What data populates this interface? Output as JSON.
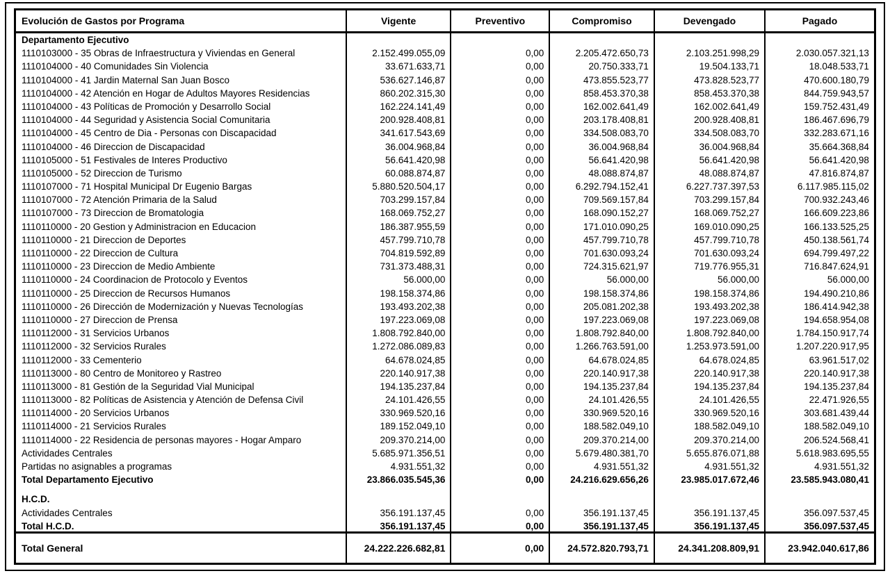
{
  "table": {
    "title": "Evolución de Gastos por Programa",
    "columns": [
      "Vigente",
      "Preventivo",
      "Compromiso",
      "Devengado",
      "Pagado"
    ],
    "sections": [
      {
        "title": "Departamento Ejecutivo",
        "rows": [
          {
            "label": "1110103000 - 35 Obras de Infraestructura y Viviendas en General",
            "values": [
              "2.152.499.055,09",
              "0,00",
              "2.205.472.650,73",
              "2.103.251.998,29",
              "2.030.057.321,13"
            ]
          },
          {
            "label": "1110104000 - 40 Comunidades Sin Violencia",
            "values": [
              "33.671.633,71",
              "0,00",
              "20.750.333,71",
              "19.504.133,71",
              "18.048.533,71"
            ]
          },
          {
            "label": "1110104000 - 41 Jardin Maternal San Juan Bosco",
            "values": [
              "536.627.146,87",
              "0,00",
              "473.855.523,77",
              "473.828.523,77",
              "470.600.180,79"
            ]
          },
          {
            "label": "1110104000 - 42 Atención en Hogar de Adultos Mayores Residencias",
            "values": [
              "860.202.315,30",
              "0,00",
              "858.453.370,38",
              "858.453.370,38",
              "844.759.943,57"
            ]
          },
          {
            "label": "1110104000 - 43 Políticas de Promoción y Desarrollo Social",
            "values": [
              "162.224.141,49",
              "0,00",
              "162.002.641,49",
              "162.002.641,49",
              "159.752.431,49"
            ]
          },
          {
            "label": "1110104000 - 44 Seguridad y Asistencia  Social Comunitaria",
            "values": [
              "200.928.408,81",
              "0,00",
              "203.178.408,81",
              "200.928.408,81",
              "186.467.696,79"
            ]
          },
          {
            "label": "1110104000 - 45 Centro de Dia - Personas con Discapacidad",
            "values": [
              "341.617.543,69",
              "0,00",
              "334.508.083,70",
              "334.508.083,70",
              "332.283.671,16"
            ]
          },
          {
            "label": "1110104000 - 46 Direccion de Discapacidad",
            "values": [
              "36.004.968,84",
              "0,00",
              "36.004.968,84",
              "36.004.968,84",
              "35.664.368,84"
            ]
          },
          {
            "label": "1110105000 - 51 Festivales de Interes Productivo",
            "values": [
              "56.641.420,98",
              "0,00",
              "56.641.420,98",
              "56.641.420,98",
              "56.641.420,98"
            ]
          },
          {
            "label": "1110105000 - 52 Direccion de Turismo",
            "values": [
              "60.088.874,87",
              "0,00",
              "48.088.874,87",
              "48.088.874,87",
              "47.816.874,87"
            ]
          },
          {
            "label": "1110107000 - 71 Hospital Municipal Dr Eugenio Bargas",
            "values": [
              "5.880.520.504,17",
              "0,00",
              "6.292.794.152,41",
              "6.227.737.397,53",
              "6.117.985.115,02"
            ]
          },
          {
            "label": "1110107000 - 72 Atención Primaria de la Salud",
            "values": [
              "703.299.157,84",
              "0,00",
              "709.569.157,84",
              "703.299.157,84",
              "700.932.243,46"
            ]
          },
          {
            "label": "1110107000 - 73 Direccion de Bromatologia",
            "values": [
              "168.069.752,27",
              "0,00",
              "168.090.152,27",
              "168.069.752,27",
              "166.609.223,86"
            ]
          },
          {
            "label": "1110110000 - 20 Gestion y Administracion en Educacion",
            "values": [
              "186.387.955,59",
              "0,00",
              "171.010.090,25",
              "169.010.090,25",
              "166.133.525,25"
            ]
          },
          {
            "label": "1110110000 - 21 Direccion de Deportes",
            "values": [
              "457.799.710,78",
              "0,00",
              "457.799.710,78",
              "457.799.710,78",
              "450.138.561,74"
            ]
          },
          {
            "label": "1110110000 - 22 Direccion de Cultura",
            "values": [
              "704.819.592,89",
              "0,00",
              "701.630.093,24",
              "701.630.093,24",
              "694.799.497,22"
            ]
          },
          {
            "label": "1110110000 - 23 Direccion de Medio Ambiente",
            "values": [
              "731.373.488,31",
              "0,00",
              "724.315.621,97",
              "719.776.955,31",
              "716.847.624,91"
            ]
          },
          {
            "label": "1110110000 - 24 Coordinacion de Protocolo y Eventos",
            "values": [
              "56.000,00",
              "0,00",
              "56.000,00",
              "56.000,00",
              "56.000,00"
            ]
          },
          {
            "label": "1110110000 - 25 Direccion de Recursos Humanos",
            "values": [
              "198.158.374,86",
              "0,00",
              "198.158.374,86",
              "198.158.374,86",
              "194.490.210,86"
            ]
          },
          {
            "label": "1110110000 - 26 Dirección de Modernización y Nuevas Tecnologías",
            "values": [
              "193.493.202,38",
              "0,00",
              "205.081.202,38",
              "193.493.202,38",
              "186.414.942,38"
            ]
          },
          {
            "label": "1110110000 - 27 Direccion de Prensa",
            "values": [
              "197.223.069,08",
              "0,00",
              "197.223.069,08",
              "197.223.069,08",
              "194.658.954,08"
            ]
          },
          {
            "label": "1110112000 - 31 Servicios Urbanos",
            "values": [
              "1.808.792.840,00",
              "0,00",
              "1.808.792.840,00",
              "1.808.792.840,00",
              "1.784.150.917,74"
            ]
          },
          {
            "label": "1110112000 - 32 Servicios Rurales",
            "values": [
              "1.272.086.089,83",
              "0,00",
              "1.266.763.591,00",
              "1.253.973.591,00",
              "1.207.220.917,95"
            ]
          },
          {
            "label": "1110112000 - 33 Cementerio",
            "values": [
              "64.678.024,85",
              "0,00",
              "64.678.024,85",
              "64.678.024,85",
              "63.961.517,02"
            ]
          },
          {
            "label": "1110113000 - 80 Centro de Monitoreo y Rastreo",
            "values": [
              "220.140.917,38",
              "0,00",
              "220.140.917,38",
              "220.140.917,38",
              "220.140.917,38"
            ]
          },
          {
            "label": "1110113000 - 81 Gestión de la Seguridad Vial Municipal",
            "values": [
              "194.135.237,84",
              "0,00",
              "194.135.237,84",
              "194.135.237,84",
              "194.135.237,84"
            ]
          },
          {
            "label": "1110113000 - 82 Políticas de Asistencia y Atención de Defensa Civil",
            "values": [
              "24.101.426,55",
              "0,00",
              "24.101.426,55",
              "24.101.426,55",
              "22.471.926,55"
            ]
          },
          {
            "label": "1110114000 - 20 Servicios Urbanos",
            "values": [
              "330.969.520,16",
              "0,00",
              "330.969.520,16",
              "330.969.520,16",
              "303.681.439,44"
            ]
          },
          {
            "label": "1110114000 - 21 Servicios Rurales",
            "values": [
              "189.152.049,10",
              "0,00",
              "188.582.049,10",
              "188.582.049,10",
              "188.582.049,10"
            ]
          },
          {
            "label": "1110114000 - 22 Residencia de personas mayores - Hogar Amparo",
            "values": [
              "209.370.214,00",
              "0,00",
              "209.370.214,00",
              "209.370.214,00",
              "206.524.568,41"
            ]
          },
          {
            "label": "Actividades Centrales",
            "values": [
              "5.685.971.356,51",
              "0,00",
              "5.679.480.381,70",
              "5.655.876.071,88",
              "5.618.983.695,55"
            ]
          },
          {
            "label": "Partidas no asignables a programas",
            "values": [
              "4.931.551,32",
              "0,00",
              "4.931.551,32",
              "4.931.551,32",
              "4.931.551,32"
            ]
          }
        ],
        "total": {
          "label": "Total Departamento Ejecutivo",
          "values": [
            "23.866.035.545,36",
            "0,00",
            "24.216.629.656,26",
            "23.985.017.672,46",
            "23.585.943.080,41"
          ]
        }
      },
      {
        "title": "H.C.D.",
        "rows": [
          {
            "label": "Actividades Centrales",
            "values": [
              "356.191.137,45",
              "0,00",
              "356.191.137,45",
              "356.191.137,45",
              "356.097.537,45"
            ]
          }
        ],
        "total": {
          "label": "Total H.C.D.",
          "values": [
            "356.191.137,45",
            "0,00",
            "356.191.137,45",
            "356.191.137,45",
            "356.097.537,45"
          ]
        }
      }
    ],
    "grand_total": {
      "label": "Total General",
      "values": [
        "24.222.226.682,81",
        "0,00",
        "24.572.820.793,71",
        "24.341.208.809,91",
        "23.942.040.617,86"
      ]
    }
  }
}
